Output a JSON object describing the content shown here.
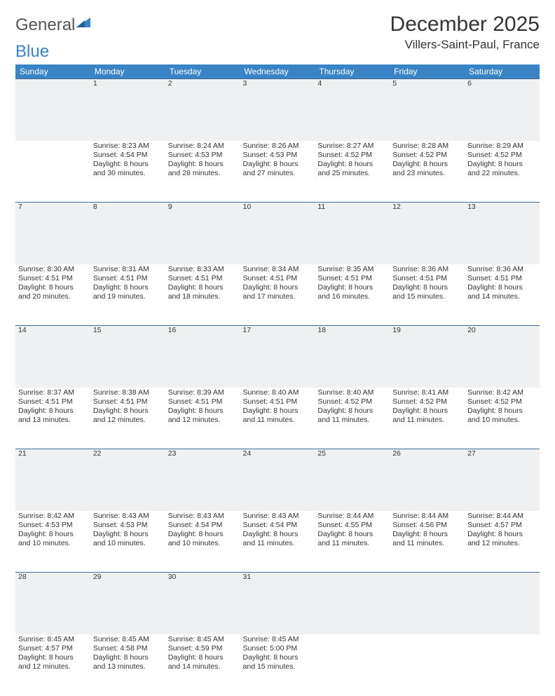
{
  "logo": {
    "text1": "General",
    "text2": "Blue"
  },
  "header": {
    "month": "December 2025",
    "location": "Villers-Saint-Paul, France"
  },
  "colors": {
    "header_bg": "#3a83c4",
    "daynum_bg": "#eef0f2",
    "row_border": "#3a6c97",
    "text": "#333333",
    "logo_gray": "#555555",
    "logo_blue": "#3a83c4"
  },
  "weekdays": [
    "Sunday",
    "Monday",
    "Tuesday",
    "Wednesday",
    "Thursday",
    "Friday",
    "Saturday"
  ],
  "weeks": [
    {
      "nums": [
        "",
        "1",
        "2",
        "3",
        "4",
        "5",
        "6"
      ],
      "cells": [
        null,
        {
          "sr": "Sunrise: 8:23 AM",
          "ss": "Sunset: 4:54 PM",
          "d1": "Daylight: 8 hours",
          "d2": "and 30 minutes."
        },
        {
          "sr": "Sunrise: 8:24 AM",
          "ss": "Sunset: 4:53 PM",
          "d1": "Daylight: 8 hours",
          "d2": "and 28 minutes."
        },
        {
          "sr": "Sunrise: 8:26 AM",
          "ss": "Sunset: 4:53 PM",
          "d1": "Daylight: 8 hours",
          "d2": "and 27 minutes."
        },
        {
          "sr": "Sunrise: 8:27 AM",
          "ss": "Sunset: 4:52 PM",
          "d1": "Daylight: 8 hours",
          "d2": "and 25 minutes."
        },
        {
          "sr": "Sunrise: 8:28 AM",
          "ss": "Sunset: 4:52 PM",
          "d1": "Daylight: 8 hours",
          "d2": "and 23 minutes."
        },
        {
          "sr": "Sunrise: 8:29 AM",
          "ss": "Sunset: 4:52 PM",
          "d1": "Daylight: 8 hours",
          "d2": "and 22 minutes."
        }
      ]
    },
    {
      "nums": [
        "7",
        "8",
        "9",
        "10",
        "11",
        "12",
        "13"
      ],
      "cells": [
        {
          "sr": "Sunrise: 8:30 AM",
          "ss": "Sunset: 4:51 PM",
          "d1": "Daylight: 8 hours",
          "d2": "and 20 minutes."
        },
        {
          "sr": "Sunrise: 8:31 AM",
          "ss": "Sunset: 4:51 PM",
          "d1": "Daylight: 8 hours",
          "d2": "and 19 minutes."
        },
        {
          "sr": "Sunrise: 8:33 AM",
          "ss": "Sunset: 4:51 PM",
          "d1": "Daylight: 8 hours",
          "d2": "and 18 minutes."
        },
        {
          "sr": "Sunrise: 8:34 AM",
          "ss": "Sunset: 4:51 PM",
          "d1": "Daylight: 8 hours",
          "d2": "and 17 minutes."
        },
        {
          "sr": "Sunrise: 8:35 AM",
          "ss": "Sunset: 4:51 PM",
          "d1": "Daylight: 8 hours",
          "d2": "and 16 minutes."
        },
        {
          "sr": "Sunrise: 8:36 AM",
          "ss": "Sunset: 4:51 PM",
          "d1": "Daylight: 8 hours",
          "d2": "and 15 minutes."
        },
        {
          "sr": "Sunrise: 8:36 AM",
          "ss": "Sunset: 4:51 PM",
          "d1": "Daylight: 8 hours",
          "d2": "and 14 minutes."
        }
      ]
    },
    {
      "nums": [
        "14",
        "15",
        "16",
        "17",
        "18",
        "19",
        "20"
      ],
      "cells": [
        {
          "sr": "Sunrise: 8:37 AM",
          "ss": "Sunset: 4:51 PM",
          "d1": "Daylight: 8 hours",
          "d2": "and 13 minutes."
        },
        {
          "sr": "Sunrise: 8:38 AM",
          "ss": "Sunset: 4:51 PM",
          "d1": "Daylight: 8 hours",
          "d2": "and 12 minutes."
        },
        {
          "sr": "Sunrise: 8:39 AM",
          "ss": "Sunset: 4:51 PM",
          "d1": "Daylight: 8 hours",
          "d2": "and 12 minutes."
        },
        {
          "sr": "Sunrise: 8:40 AM",
          "ss": "Sunset: 4:51 PM",
          "d1": "Daylight: 8 hours",
          "d2": "and 11 minutes."
        },
        {
          "sr": "Sunrise: 8:40 AM",
          "ss": "Sunset: 4:52 PM",
          "d1": "Daylight: 8 hours",
          "d2": "and 11 minutes."
        },
        {
          "sr": "Sunrise: 8:41 AM",
          "ss": "Sunset: 4:52 PM",
          "d1": "Daylight: 8 hours",
          "d2": "and 11 minutes."
        },
        {
          "sr": "Sunrise: 8:42 AM",
          "ss": "Sunset: 4:52 PM",
          "d1": "Daylight: 8 hours",
          "d2": "and 10 minutes."
        }
      ]
    },
    {
      "nums": [
        "21",
        "22",
        "23",
        "24",
        "25",
        "26",
        "27"
      ],
      "cells": [
        {
          "sr": "Sunrise: 8:42 AM",
          "ss": "Sunset: 4:53 PM",
          "d1": "Daylight: 8 hours",
          "d2": "and 10 minutes."
        },
        {
          "sr": "Sunrise: 8:43 AM",
          "ss": "Sunset: 4:53 PM",
          "d1": "Daylight: 8 hours",
          "d2": "and 10 minutes."
        },
        {
          "sr": "Sunrise: 8:43 AM",
          "ss": "Sunset: 4:54 PM",
          "d1": "Daylight: 8 hours",
          "d2": "and 10 minutes."
        },
        {
          "sr": "Sunrise: 8:43 AM",
          "ss": "Sunset: 4:54 PM",
          "d1": "Daylight: 8 hours",
          "d2": "and 11 minutes."
        },
        {
          "sr": "Sunrise: 8:44 AM",
          "ss": "Sunset: 4:55 PM",
          "d1": "Daylight: 8 hours",
          "d2": "and 11 minutes."
        },
        {
          "sr": "Sunrise: 8:44 AM",
          "ss": "Sunset: 4:56 PM",
          "d1": "Daylight: 8 hours",
          "d2": "and 11 minutes."
        },
        {
          "sr": "Sunrise: 8:44 AM",
          "ss": "Sunset: 4:57 PM",
          "d1": "Daylight: 8 hours",
          "d2": "and 12 minutes."
        }
      ]
    },
    {
      "nums": [
        "28",
        "29",
        "30",
        "31",
        "",
        "",
        ""
      ],
      "cells": [
        {
          "sr": "Sunrise: 8:45 AM",
          "ss": "Sunset: 4:57 PM",
          "d1": "Daylight: 8 hours",
          "d2": "and 12 minutes."
        },
        {
          "sr": "Sunrise: 8:45 AM",
          "ss": "Sunset: 4:58 PM",
          "d1": "Daylight: 8 hours",
          "d2": "and 13 minutes."
        },
        {
          "sr": "Sunrise: 8:45 AM",
          "ss": "Sunset: 4:59 PM",
          "d1": "Daylight: 8 hours",
          "d2": "and 14 minutes."
        },
        {
          "sr": "Sunrise: 8:45 AM",
          "ss": "Sunset: 5:00 PM",
          "d1": "Daylight: 8 hours",
          "d2": "and 15 minutes."
        },
        null,
        null,
        null
      ]
    }
  ]
}
